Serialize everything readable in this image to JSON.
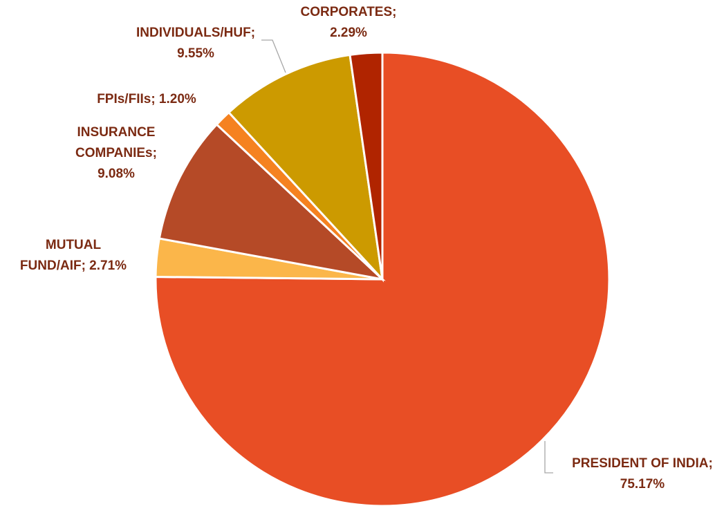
{
  "chart_data": {
    "type": "pie",
    "title": "",
    "start_angle_deg": 0,
    "direction": "clockwise",
    "legend": "none",
    "slices": [
      {
        "name": "PRESIDENT OF INDIA",
        "value": 75.17,
        "display": "75.17%",
        "color": "#e84e25"
      },
      {
        "name": "MUTUAL FUND/AIF",
        "value": 2.71,
        "display": "2.71%",
        "color": "#fbb64a"
      },
      {
        "name": "INSURANCE COMPANIEs",
        "value": 9.08,
        "display": "9.08%",
        "color": "#b54a27"
      },
      {
        "name": "FPIs/FIIs",
        "value": 1.2,
        "display": "1.20%",
        "color": "#f58220"
      },
      {
        "name": "INDIVIDUALS/HUF",
        "value": 9.55,
        "display": "9.55%",
        "color": "#cc9a00"
      },
      {
        "name": "CORPORATES",
        "value": 2.29,
        "display": "2.29%",
        "color": "#b02400"
      }
    ]
  }
}
